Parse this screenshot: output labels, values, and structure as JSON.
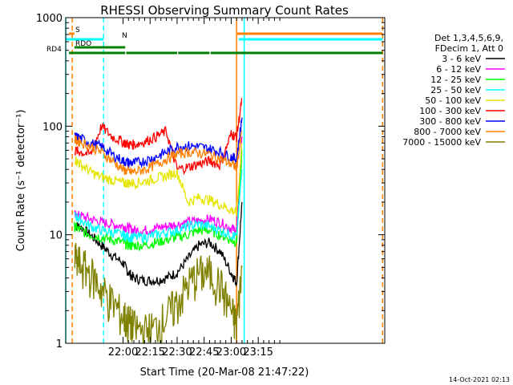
{
  "chart_data": {
    "type": "line",
    "title": "RHESSI Observing Summary Count Rates",
    "xlabel": "Start Time (20-Mar-08 21:47:22)",
    "ylabel": "Count Rate (s⁻¹ detector⁻¹)",
    "y_scale": "log",
    "ylim": [
      1,
      1000
    ],
    "xlim_minutes": [
      21.47,
      24.42
    ],
    "x_ticks": [
      {
        "label": "22:00",
        "min": 22.0
      },
      {
        "label": "22:15",
        "min": 22.25
      },
      {
        "label": "22:30",
        "min": 22.5
      },
      {
        "label": "22:45",
        "min": 22.75
      },
      {
        "label": "23:00",
        "min": 23.0
      },
      {
        "label": "23:15",
        "min": 23.25
      }
    ],
    "y_ticks": [
      {
        "label": "1",
        "value": 1
      },
      {
        "label": "10",
        "value": 10
      },
      {
        "label": "100",
        "value": 100
      },
      {
        "label": "1000",
        "value": 1000
      }
    ],
    "legend_header": [
      "Det 1,3,4,5,6,9,",
      "FDecim 1, Att 0"
    ],
    "legend_position": "right",
    "series": [
      {
        "name": "3 - 6 keV",
        "color": "#000000",
        "x": [
          21.55,
          21.6,
          21.7,
          21.8,
          21.9,
          22.0,
          22.05,
          22.1,
          22.2,
          22.3,
          22.4,
          22.5,
          22.6,
          22.7,
          22.8,
          22.9,
          23.0,
          23.05,
          23.1
        ],
        "y": [
          12,
          12,
          10,
          8,
          6.5,
          5.5,
          4.5,
          4,
          3.8,
          3.8,
          4,
          4.5,
          6,
          8,
          8.5,
          7,
          4.5,
          3.6,
          20
        ]
      },
      {
        "name": "6 - 12 keV",
        "color": "#ff00ff",
        "x": [
          21.55,
          21.6,
          21.7,
          21.8,
          21.9,
          22.0,
          22.05,
          22.1,
          22.2,
          22.3,
          22.4,
          22.5,
          22.6,
          22.7,
          22.8,
          22.9,
          23.0,
          23.05,
          23.1
        ],
        "y": [
          15,
          15,
          14,
          13,
          12.5,
          12,
          11.5,
          11,
          11,
          11.5,
          12,
          12.5,
          13,
          13.5,
          14,
          13,
          11.5,
          11,
          80
        ]
      },
      {
        "name": "12 - 25 keV",
        "color": "#00ff00",
        "x": [
          21.55,
          21.6,
          21.7,
          21.8,
          21.9,
          22.0,
          22.05,
          22.1,
          22.2,
          22.3,
          22.4,
          22.5,
          22.6,
          22.7,
          22.8,
          22.9,
          23.0,
          23.05,
          23.1
        ],
        "y": [
          12,
          11,
          10,
          9.5,
          9,
          8.5,
          8,
          8,
          8,
          8.5,
          9,
          9.5,
          10,
          11,
          11,
          10,
          9,
          8.5,
          60
        ]
      },
      {
        "name": "25 - 50 keV",
        "color": "#00ffff",
        "x": [
          21.55,
          21.6,
          21.7,
          21.8,
          21.9,
          22.0,
          22.05,
          22.1,
          22.2,
          22.3,
          22.4,
          22.5,
          22.6,
          22.7,
          22.8,
          22.9,
          23.0,
          23.05,
          23.1
        ],
        "y": [
          15,
          14,
          12,
          11,
          10.5,
          10,
          9.5,
          9.5,
          9.5,
          10,
          10.5,
          11,
          12,
          12.5,
          12,
          11,
          10,
          9.5,
          40
        ]
      },
      {
        "name": "50 - 100 keV",
        "color": "#e5e500",
        "x": [
          21.55,
          21.6,
          21.7,
          21.8,
          21.9,
          22.0,
          22.05,
          22.1,
          22.2,
          22.3,
          22.4,
          22.5,
          22.6,
          22.7,
          22.8,
          22.9,
          23.0,
          23.05,
          23.1
        ],
        "y": [
          50,
          45,
          38,
          34,
          32,
          30,
          30,
          30,
          31,
          33,
          35,
          38,
          20,
          22,
          21,
          19,
          17,
          16,
          70
        ]
      },
      {
        "name": "100 - 300 keV",
        "color": "#ff0000",
        "x": [
          21.55,
          21.6,
          21.7,
          21.8,
          21.9,
          22.0,
          22.05,
          22.1,
          22.2,
          22.3,
          22.4,
          22.5,
          22.6,
          22.7,
          22.8,
          22.9,
          23.0,
          23.05,
          23.1
        ],
        "y": [
          60,
          58,
          55,
          100,
          80,
          72,
          68,
          68,
          72,
          80,
          90,
          40,
          42,
          45,
          48,
          44,
          85,
          80,
          180
        ]
      },
      {
        "name": "300 - 800 keV",
        "color": "#0000ff",
        "x": [
          21.55,
          21.6,
          21.7,
          21.8,
          21.9,
          22.0,
          22.05,
          22.1,
          22.2,
          22.3,
          22.4,
          22.5,
          22.6,
          22.7,
          22.8,
          22.9,
          23.0,
          23.05,
          23.1
        ],
        "y": [
          80,
          78,
          70,
          65,
          55,
          48,
          46,
          46,
          48,
          52,
          58,
          65,
          66,
          65,
          62,
          58,
          52,
          50,
          120
        ]
      },
      {
        "name": "800 - 7000 keV",
        "color": "#ff8000",
        "x": [
          21.55,
          21.6,
          21.7,
          21.8,
          21.9,
          22.0,
          22.05,
          22.1,
          22.2,
          22.3,
          22.4,
          22.5,
          22.6,
          22.7,
          22.8,
          22.9,
          23.0,
          23.05,
          23.1
        ],
        "y": [
          75,
          72,
          65,
          58,
          48,
          40,
          38,
          38,
          40,
          44,
          50,
          56,
          58,
          57,
          55,
          50,
          45,
          42,
          90
        ]
      },
      {
        "name": "7000 - 15000 keV",
        "color": "#808000",
        "x": [
          21.55,
          21.6,
          21.7,
          21.8,
          21.9,
          22.0,
          22.05,
          22.1,
          22.2,
          22.3,
          22.4,
          22.5,
          22.6,
          22.7,
          22.8,
          22.9,
          23.0,
          23.05,
          23.1
        ],
        "y": [
          6,
          5.5,
          4.5,
          3.2,
          2.4,
          1.8,
          1.6,
          1.4,
          1.3,
          1.4,
          1.8,
          2.4,
          3.5,
          4.5,
          4.5,
          3.5,
          2,
          1.5,
          5
        ]
      }
    ],
    "flag_rows": [
      {
        "label": "S",
        "color": "#ff8000",
        "segments": [
          [
            21.5,
            21.55
          ],
          [
            23.05,
            24.4
          ]
        ]
      },
      {
        "label": "N",
        "color": "#00ffff",
        "segments": [
          [
            21.47,
            21.82
          ],
          [
            23.07,
            24.4
          ]
        ]
      },
      {
        "label": "RDO",
        "color": "#008000",
        "segments": [
          [
            21.55,
            22.02
          ]
        ]
      },
      {
        "label": "RD4",
        "color": "#008000",
        "segments": [
          [
            21.5,
            22.02
          ],
          [
            22.03,
            22.5
          ],
          [
            22.51,
            22.8
          ],
          [
            22.81,
            24.4
          ]
        ]
      }
    ],
    "vertical_lines": [
      {
        "x": 21.47,
        "color": "#00ffff",
        "dashed": false
      },
      {
        "x": 21.53,
        "color": "#ff8000",
        "dashed": true
      },
      {
        "x": 21.82,
        "color": "#00ffff",
        "dashed": true
      },
      {
        "x": 23.05,
        "color": "#ff8000",
        "dashed": false
      },
      {
        "x": 23.12,
        "color": "#00ffff",
        "dashed": false
      },
      {
        "x": 24.4,
        "color": "#ff8000",
        "dashed": true
      }
    ]
  },
  "footer_timestamp": "14-Oct-2021 02:13"
}
